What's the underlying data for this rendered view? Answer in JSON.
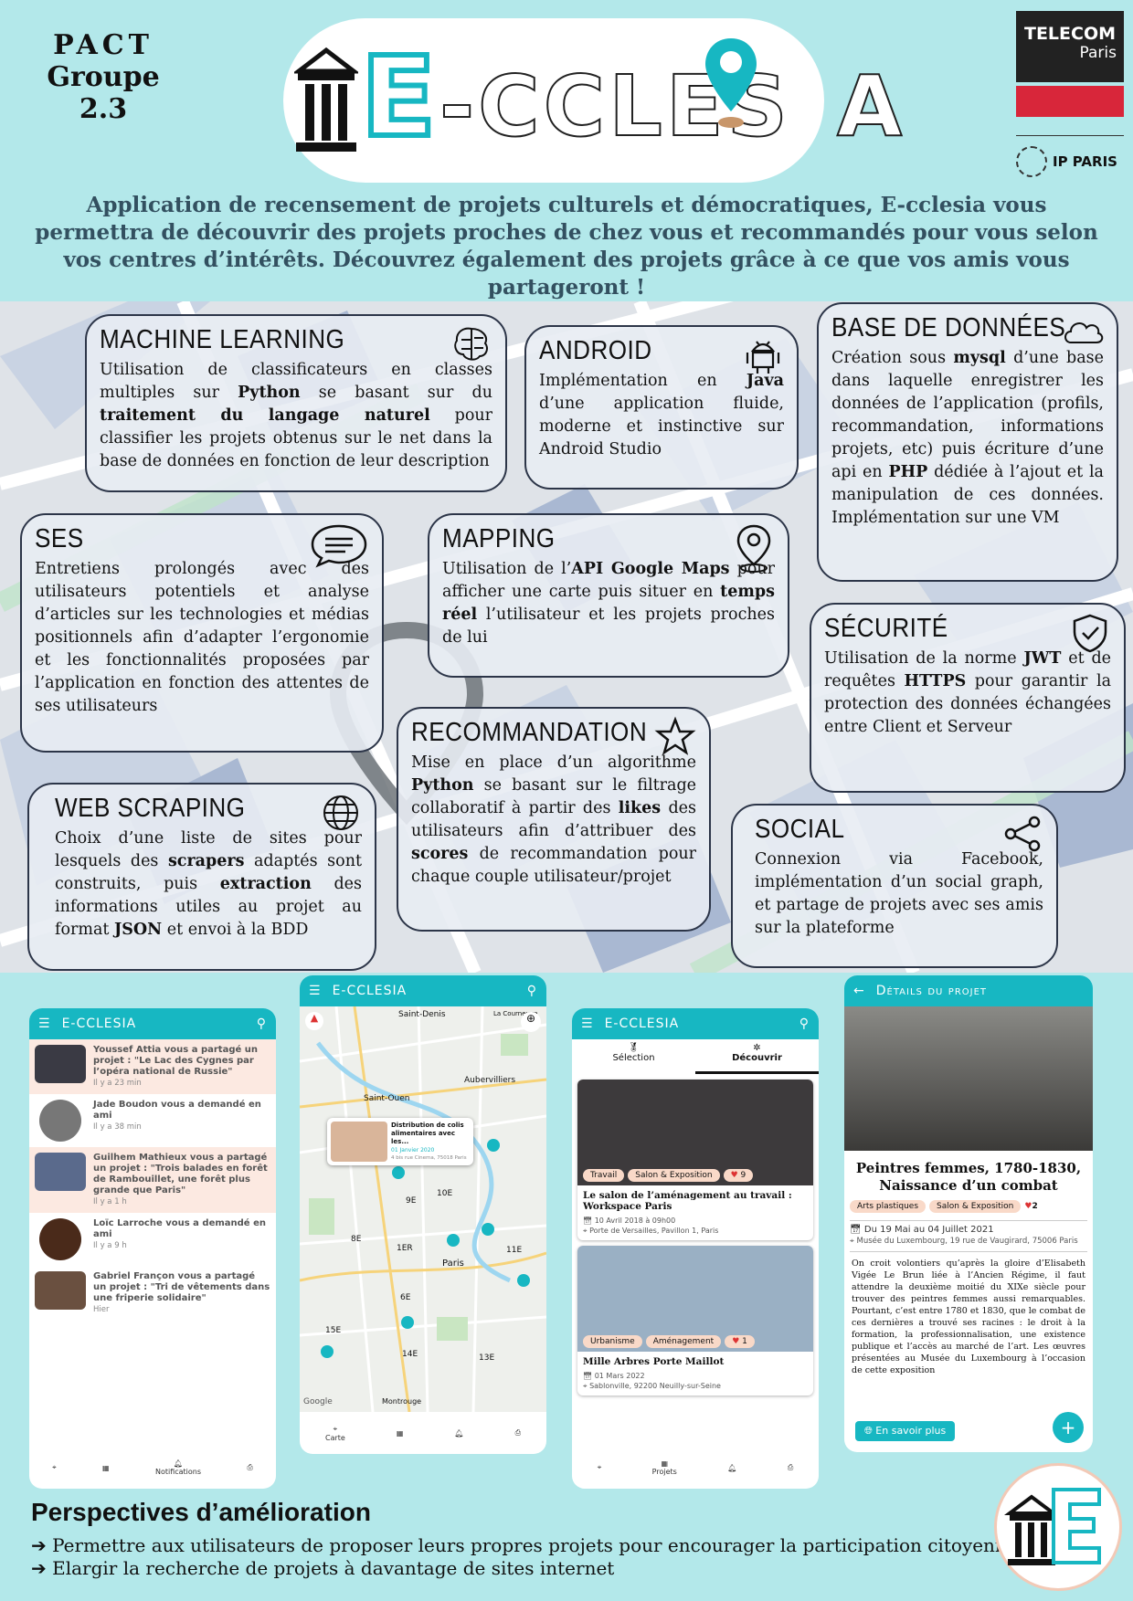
{
  "header": {
    "pact_line1": "PACT",
    "pact_line2": "Groupe 2.3",
    "logo_text": "E-CCLESIA",
    "logo_e": "E",
    "logo_rest": "-CCLES",
    "logo_end": "A",
    "telecom_line1": "TELECOM",
    "telecom_line2": "Paris",
    "ipparis": "IP PARIS",
    "intro": "Application de recensement de projets culturels et démocratiques, E-cclesia vous permettra de découvrir des projets proches de chez vous et recommandés pour vous selon vos centres d’intérêts. Découvrez également des projets grâce à ce que vos amis vous partageront !"
  },
  "boxes": {
    "ml": {
      "title": "MACHINE LEARNING",
      "icon": "brain-icon",
      "p1": "Utilisation de classificateurs en classes multiples sur ",
      "b1": "Python",
      "p2": " se basant sur du ",
      "b2": "traitement du langage naturel",
      "p3": " pour classifier les projets obtenus sur le net dans la base de données en fonction de leur description"
    },
    "android": {
      "title": "ANDROID",
      "icon": "android-icon",
      "p1": "Implémentation en ",
      "b1": "Java",
      "p2": " d’une application fluide, moderne et instinctive sur Android Studio"
    },
    "bdd": {
      "title": "BASE DE DONNÉES",
      "icon": "cloud-icon",
      "p1": "Création sous ",
      "b1": "mysql",
      "p2": " d’une base dans laquelle enregistrer les données de l’application (profils, recommandation, informations projets, etc) puis écriture d’une api en ",
      "b2": "PHP",
      "p3": " dédiée à l’ajout et la manipulation de ces données. Implémentation sur une VM"
    },
    "ses": {
      "title": "SES",
      "icon": "chat-icon",
      "p1": "Entretiens prolongés avec des utilisateurs potentiels et analyse d’articles sur les technologies et médias positionnels afin d’adapter l’ergonomie et les fonctionnalités proposées par l’application en fonction des attentes de ses utilisateurs"
    },
    "mapping": {
      "title": "MAPPING",
      "icon": "location-pin-icon",
      "p1": "Utilisation de l’",
      "b1": "API Google Maps",
      "p2": " pour afficher une carte puis situer en ",
      "b2": "temps réel",
      "p3": " l’utilisateur et les projets proches de lui"
    },
    "securite": {
      "title": "SÉCURITÉ",
      "icon": "shield-check-icon",
      "p1": "Utilisation de la norme ",
      "b1": "JWT",
      "p2": " et de requêtes ",
      "b2": "HTTPS",
      "p3": " pour garantir la protection des données échangées entre Client et Serveur"
    },
    "reco": {
      "title": "RECOMMANDATION",
      "icon": "star-icon",
      "p1": "Mise en place d’un algorithme ",
      "b1": "Python",
      "p2": " se basant sur le filtrage collaboratif à partir des ",
      "b2": "likes",
      "p3": " des utilisateurs afin d’attribuer des ",
      "b3": "scores",
      "p4": " de recommandation pour chaque couple utilisateur/projet"
    },
    "scraping": {
      "title": "WEB SCRAPING",
      "icon": "globe-icon",
      "p1": "Choix d’une liste de sites pour lesquels des ",
      "b1": "scrapers",
      "p2": " adaptés sont construits, puis ",
      "b2": "extraction",
      "p3": " des informations utiles au projet au format ",
      "b3": "JSON",
      "p4": " et envoi à la BDD"
    },
    "social": {
      "title": "SOCIAL",
      "icon": "share-icon",
      "p1": "Connexion via Facebook, implémentation d’un social graph, et partage de projets avec ses amis sur la plateforme"
    }
  },
  "phone1": {
    "title": "E-CCLESIA",
    "notifs": [
      {
        "text": "Youssef Attia vous a partagé un projet : \"Le Lac des Cygnes par l’opéra national de Russie\"",
        "time": "Il y a 23 min"
      },
      {
        "text": "Jade Boudon vous a demandé en ami",
        "time": "Il y a 38 min"
      },
      {
        "text": "Guilhem Mathieux vous a partagé un projet : \"Trois balades en forêt de Rambouillet, une forêt plus grande que Paris\"",
        "time": "Il y a 1 h"
      },
      {
        "text": "Loïc Larroche vous a demandé en ami",
        "time": "Il y a 9 h"
      },
      {
        "text": "Gabriel Françon vous a partagé un projet : \"Tri de vêtements dans une friperie solidaire\"",
        "time": "Hier"
      }
    ],
    "nav_active": "Notifications"
  },
  "phone2": {
    "title": "E-CCLESIA",
    "map_labels": [
      "Saint-Denis",
      "La Courneuve",
      "Aubervilliers",
      "Saint-Ouen",
      "9E",
      "10E",
      "8E",
      "1ER",
      "11E",
      "Paris",
      "6E",
      "15E",
      "14E",
      "13E",
      "Montrouge",
      "Google"
    ],
    "popup_title": "Distribution de colis alimentaires avec les...",
    "popup_date": "01 Janvier 2020",
    "popup_addr": "4 bis rue Cinema, 75018 Paris",
    "nav_active": "Carte"
  },
  "phone3": {
    "title": "E-CCLESIA",
    "tab1": "Sélection",
    "tab2": "Découvrir",
    "card1": {
      "tag1": "Travail",
      "tag2": "Salon & Exposition",
      "likes": "9",
      "title": "Le salon de l’aménagement au travail : Workspace Paris",
      "date": "10 Avril 2018 à 09h00",
      "addr": "Porte de Versailles, Pavillon 1, Paris"
    },
    "card2": {
      "tag1": "Urbanisme",
      "tag2": "Aménagement",
      "likes": "1",
      "title": "Mille Arbres Porte Maillot",
      "date": "01 Mars 2022",
      "addr": "Sablonville, 92200 Neuilly-sur-Seine"
    },
    "nav_active": "Projets"
  },
  "phone4": {
    "title": "Détails du projet",
    "proj_title": "Peintres femmes, 1780-1830, Naissance d’un combat",
    "tag1": "Arts plastiques",
    "tag2": "Salon & Exposition",
    "likes": "2",
    "date": "Du 19 Mai au 04 Juillet 2021",
    "addr": "Musée du Luxembourg, 19 rue de Vaugirard, 75006 Paris",
    "desc": "On croit volontiers qu’après la gloire d’Elisabeth Vigée Le Brun liée à l’Ancien Régime, il faut attendre la deuxième moitié du XIXe siècle pour trouver des peintres femmes aussi remarquables. Pourtant, c’est entre 1780 et 1830, que le combat de ces dernières a trouvé ses racines : le droit à la formation, la professionnalisation, une existence publique et l’accès au marché de l’art. Les œuvres présentées au Musée du Luxembourg à l’occasion de cette exposition",
    "button": "En savoir plus"
  },
  "perspectives": {
    "title": "Perspectives d’amélioration",
    "items": [
      "Permettre aux utilisateurs de proposer leurs propres projets pour encourager la participation citoyenne",
      "Elargir la recherche de projets à davantage de sites internet"
    ]
  }
}
